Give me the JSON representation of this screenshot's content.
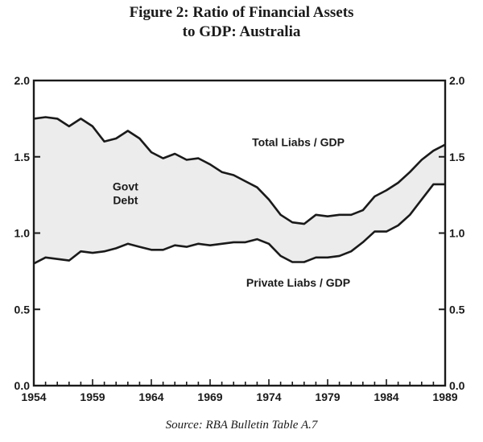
{
  "figure": {
    "title_line1": "Figure 2: Ratio of Financial Assets",
    "title_line2": "to GDP: Australia",
    "source": "Source: RBA Bulletin Table A.7"
  },
  "chart_data": {
    "type": "area",
    "xlim": [
      1954,
      1989
    ],
    "ylim": [
      0.0,
      2.0
    ],
    "x_ticks": [
      1954,
      1959,
      1964,
      1969,
      1974,
      1979,
      1984,
      1989
    ],
    "x_tick_labels": [
      "1954",
      "1959",
      "1964",
      "1969",
      "1974",
      "1979",
      "1984",
      "1989"
    ],
    "y_ticks": [
      0.0,
      0.5,
      1.0,
      1.5,
      2.0
    ],
    "y_tick_labels": [
      "0.0",
      "0.5",
      "1.0",
      "1.5",
      "2.0"
    ],
    "grid": false,
    "fill_color": "#ececec",
    "line_color": "#1a1a1a",
    "x": [
      1954,
      1955,
      1956,
      1957,
      1958,
      1959,
      1960,
      1961,
      1962,
      1963,
      1964,
      1965,
      1966,
      1967,
      1968,
      1969,
      1970,
      1971,
      1972,
      1973,
      1974,
      1975,
      1976,
      1977,
      1978,
      1979,
      1980,
      1981,
      1982,
      1983,
      1984,
      1985,
      1986,
      1987,
      1988,
      1989
    ],
    "series": [
      {
        "name": "Total Liabs / GDP",
        "values": [
          1.75,
          1.76,
          1.75,
          1.7,
          1.75,
          1.7,
          1.6,
          1.62,
          1.67,
          1.62,
          1.53,
          1.49,
          1.52,
          1.48,
          1.49,
          1.45,
          1.4,
          1.38,
          1.34,
          1.3,
          1.22,
          1.12,
          1.07,
          1.06,
          1.12,
          1.11,
          1.12,
          1.12,
          1.15,
          1.24,
          1.28,
          1.33,
          1.4,
          1.48,
          1.54,
          1.58
        ]
      },
      {
        "name": "Private Liabs / GDP",
        "values": [
          0.8,
          0.84,
          0.83,
          0.82,
          0.88,
          0.87,
          0.88,
          0.9,
          0.93,
          0.91,
          0.89,
          0.89,
          0.92,
          0.91,
          0.93,
          0.92,
          0.93,
          0.94,
          0.94,
          0.96,
          0.93,
          0.85,
          0.81,
          0.81,
          0.84,
          0.84,
          0.85,
          0.88,
          0.94,
          1.01,
          1.01,
          1.05,
          1.12,
          1.22,
          1.32,
          1.32
        ]
      }
    ],
    "annotations": [
      {
        "text": "Total Liabs / GDP",
        "x": 1976.5,
        "y": 1.57
      },
      {
        "text": "Govt",
        "x": 1961.8,
        "y": 1.28
      },
      {
        "text": "Debt",
        "x": 1961.8,
        "y": 1.19
      },
      {
        "text": "Private Liabs / GDP",
        "x": 1976.5,
        "y": 0.65
      }
    ]
  }
}
